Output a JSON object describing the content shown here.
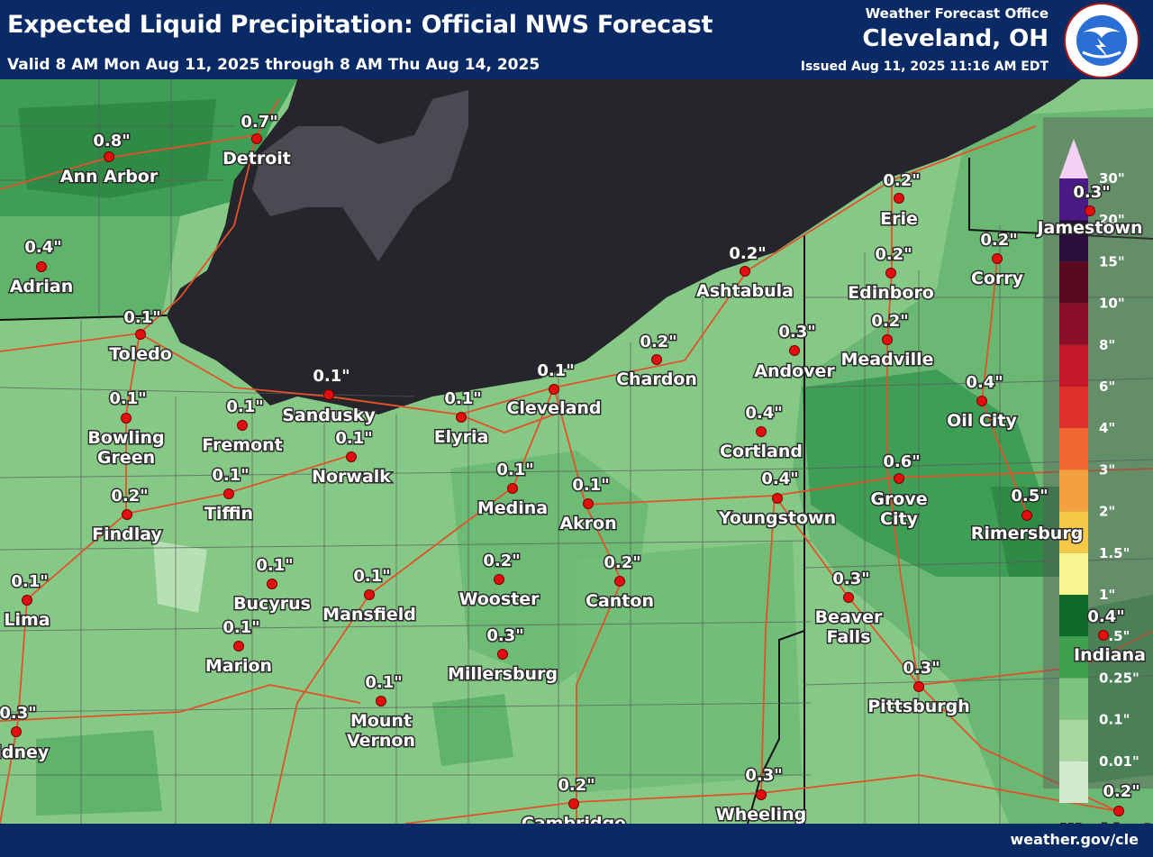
{
  "header": {
    "title": "Expected Liquid Precipitation: Official NWS Forecast",
    "valid": "Valid 8 AM Mon Aug 11, 2025 through 8 AM Thu Aug 14, 2025",
    "office_label": "Weather Forecast Office",
    "office": "Cleveland, OH",
    "issued": "Issued Aug 11, 2025 11:16 AM EDT",
    "logo_text": "NATIONAL WEATHER SERVICE"
  },
  "footer": {
    "url": "weather.gov/cle"
  },
  "colors": {
    "banner": "#0a2a66",
    "lake": "#25252b",
    "marker": "#e01010"
  },
  "legend": {
    "labels": [
      "30\"",
      "20\"",
      "15\"",
      "10\"",
      "8\"",
      "6\"",
      "4\"",
      "3\"",
      "2\"",
      "1.5\"",
      "1\"",
      "0.5\"",
      "0.25\"",
      "0.1\"",
      "0.01\""
    ],
    "colors": [
      "#4b1a86",
      "#2a0f3a",
      "#5a0a1e",
      "#8b0f2a",
      "#c5182c",
      "#e0302a",
      "#f06830",
      "#f5a040",
      "#f6c848",
      "#f6f590",
      "#0f6a2a",
      "#3fa050",
      "#7ec47f",
      "#a8d8a0",
      "#d0ead0"
    ]
  },
  "places": [
    {
      "name": "Ann Arbor",
      "amount": "0.8\""
    },
    {
      "name": "Detroit",
      "amount": "0.7\""
    },
    {
      "name": "Adrian",
      "amount": "0.4\""
    },
    {
      "name": "Toledo",
      "amount": "0.1\""
    },
    {
      "name": "Bowling Green",
      "line1": "Bowling",
      "line2": "Green",
      "amount": "0.1\""
    },
    {
      "name": "Fremont",
      "amount": "0.1\""
    },
    {
      "name": "Sandusky",
      "amount": "0.1\""
    },
    {
      "name": "Norwalk",
      "amount": "0.1\""
    },
    {
      "name": "Elyria",
      "amount": "0.1\""
    },
    {
      "name": "Cleveland",
      "amount": "0.1\""
    },
    {
      "name": "Chardon",
      "amount": "0.2\""
    },
    {
      "name": "Ashtabula",
      "amount": "0.2\""
    },
    {
      "name": "Erie",
      "amount": "0.2\""
    },
    {
      "name": "Edinboro",
      "amount": "0.2\""
    },
    {
      "name": "Corry",
      "amount": "0.2\""
    },
    {
      "name": "Jamestown",
      "amount": "0.3\""
    },
    {
      "name": "Andover",
      "amount": "0.3\""
    },
    {
      "name": "Meadville",
      "amount": "0.2\""
    },
    {
      "name": "Oil City",
      "amount": "0.4\""
    },
    {
      "name": "Cortland",
      "amount": "0.4\""
    },
    {
      "name": "Youngstown",
      "amount": "0.4\""
    },
    {
      "name": "Grove City",
      "line1": "Grove",
      "line2": "City",
      "amount": "0.6\""
    },
    {
      "name": "Rimersburg",
      "amount": "0.5\""
    },
    {
      "name": "Findlay",
      "amount": "0.2\""
    },
    {
      "name": "Tiffin",
      "amount": "0.1\""
    },
    {
      "name": "Medina",
      "amount": "0.1\""
    },
    {
      "name": "Akron",
      "amount": "0.1\""
    },
    {
      "name": "Lima",
      "amount": "0.1\""
    },
    {
      "name": "Bucyrus",
      "amount": "0.1\""
    },
    {
      "name": "Mansfield",
      "amount": "0.1\""
    },
    {
      "name": "Wooster",
      "amount": "0.2\""
    },
    {
      "name": "Canton",
      "amount": "0.2\""
    },
    {
      "name": "Beaver Falls",
      "line1": "Beaver",
      "line2": "Falls",
      "amount": "0.3\""
    },
    {
      "name": "Indiana",
      "amount": "0.4\""
    },
    {
      "name": "Marion",
      "amount": "0.1\""
    },
    {
      "name": "Millersburg",
      "amount": "0.3\""
    },
    {
      "name": "Pittsburgh",
      "amount": "0.3\""
    },
    {
      "name": "Sidney",
      "amount": "0.3\""
    },
    {
      "name": "Mount Vernon",
      "line1": "Mount",
      "line2": "Vernon",
      "amount": "0.1\""
    },
    {
      "name": "Cambridge",
      "amount": "0.2\""
    },
    {
      "name": "Wheeling",
      "amount": "0.3\""
    },
    {
      "name": "Washington",
      "amount": "0.2\""
    }
  ]
}
